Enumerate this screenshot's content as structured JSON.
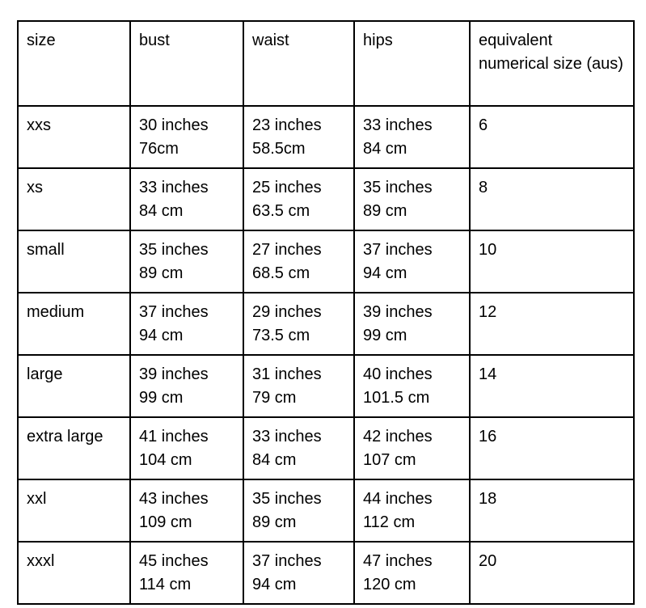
{
  "table": {
    "headers": {
      "size": "size",
      "bust": "bust",
      "waist": "waist",
      "hips": "hips",
      "aus": "equivalent numerical size (aus)"
    },
    "rows": [
      {
        "size": "xxs",
        "bust": {
          "in": "30 inches",
          "cm": "76cm"
        },
        "waist": {
          "in": "23 inches",
          "cm": "58.5cm"
        },
        "hips": {
          "in": "33 inches",
          "cm": "84 cm"
        },
        "aus": "6"
      },
      {
        "size": "xs",
        "bust": {
          "in": "33 inches",
          "cm": "84 cm"
        },
        "waist": {
          "in": "25 inches",
          "cm": "63.5 cm"
        },
        "hips": {
          "in": "35 inches",
          "cm": "89 cm"
        },
        "aus": "8"
      },
      {
        "size": "small",
        "bust": {
          "in": "35 inches",
          "cm": "89 cm"
        },
        "waist": {
          "in": "27 inches",
          "cm": "68.5 cm"
        },
        "hips": {
          "in": "37 inches",
          "cm": "94 cm"
        },
        "aus": "10"
      },
      {
        "size": "medium",
        "bust": {
          "in": "37 inches",
          "cm": "94 cm"
        },
        "waist": {
          "in": "29 inches",
          "cm": "73.5 cm"
        },
        "hips": {
          "in": "39 inches",
          "cm": "99 cm"
        },
        "aus": "12"
      },
      {
        "size": "large",
        "bust": {
          "in": "39 inches",
          "cm": "99 cm"
        },
        "waist": {
          "in": "31 inches",
          "cm": "79 cm"
        },
        "hips": {
          "in": "40 inches",
          "cm": "101.5 cm"
        },
        "aus": "14"
      },
      {
        "size": "extra large",
        "bust": {
          "in": "41 inches",
          "cm": "104 cm"
        },
        "waist": {
          "in": "33 inches",
          "cm": "84 cm"
        },
        "hips": {
          "in": "42 inches",
          "cm": "107 cm"
        },
        "aus": "16"
      },
      {
        "size": "xxl",
        "bust": {
          "in": "43 inches",
          "cm": "109 cm"
        },
        "waist": {
          "in": "35 inches",
          "cm": "89 cm"
        },
        "hips": {
          "in": "44 inches",
          "cm": "112 cm"
        },
        "aus": "18"
      },
      {
        "size": "xxxl",
        "bust": {
          "in": "45 inches",
          "cm": "114 cm"
        },
        "waist": {
          "in": "37 inches",
          "cm": "94 cm"
        },
        "hips": {
          "in": "47 inches",
          "cm": "120 cm"
        },
        "aus": "20"
      }
    ]
  }
}
